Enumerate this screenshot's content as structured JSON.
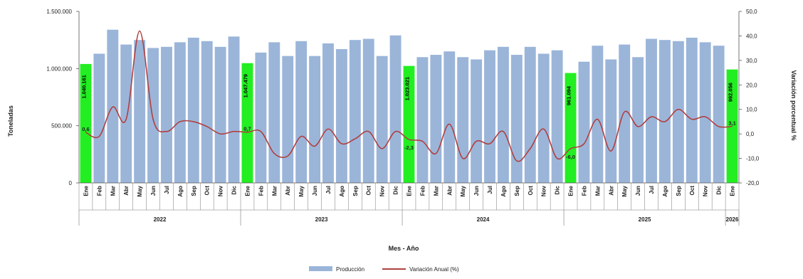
{
  "chart_data": {
    "type": "bar+line",
    "xlabel": "Mes - Año",
    "ylabel": "Toneladas",
    "y2label": "Variación porcentual %",
    "ylim": [
      0,
      1500000
    ],
    "y2lim": [
      -20,
      50
    ],
    "y_ticks": [
      "0",
      "500.000",
      "1.000.000",
      "1.500.000"
    ],
    "y_tick_values": [
      0,
      500000,
      1000000,
      1500000
    ],
    "y2_ticks": [
      "-20,0",
      "-10,0",
      "0,0",
      "10,0",
      "20,0",
      "30,0",
      "40,0",
      "50,0"
    ],
    "y2_tick_values": [
      -20,
      -10,
      0,
      10,
      20,
      30,
      40,
      50
    ],
    "categories": [
      "Ene",
      "Feb",
      "Mar",
      "Abr",
      "May",
      "Jun",
      "Jul",
      "Ago",
      "Sep",
      "Oct",
      "Nov",
      "Dic",
      "Ene",
      "Feb",
      "Mar",
      "Abr",
      "May",
      "Jun",
      "Jul",
      "Ago",
      "Sep",
      "Oct",
      "Nov",
      "Dic",
      "Ene",
      "Feb",
      "Mar",
      "Abr",
      "May",
      "Jun",
      "Jul",
      "Ago",
      "Sep",
      "Oct",
      "Nov",
      "Dic",
      "Ene",
      "Feb",
      "Mar",
      "Abr",
      "May",
      "Jun",
      "Jul",
      "Ago",
      "Sep",
      "Oct",
      "Nov",
      "Dic",
      "Ene"
    ],
    "years": [
      {
        "label": "2022",
        "start": 0,
        "count": 12
      },
      {
        "label": "2023",
        "start": 12,
        "count": 12
      },
      {
        "label": "2024",
        "start": 24,
        "count": 12
      },
      {
        "label": "2025",
        "start": 36,
        "count": 12
      },
      {
        "label": "2026",
        "start": 48,
        "count": 1
      }
    ],
    "series": [
      {
        "name": "Producción",
        "type": "bar",
        "color": "#9bb5d9",
        "highlight_color": "#22ee22",
        "highlight_indices": [
          0,
          12,
          24,
          36,
          48
        ],
        "values": [
          1040161,
          1130000,
          1340000,
          1210000,
          1250000,
          1180000,
          1190000,
          1230000,
          1270000,
          1240000,
          1190000,
          1280000,
          1047479,
          1140000,
          1230000,
          1110000,
          1240000,
          1110000,
          1220000,
          1170000,
          1250000,
          1260000,
          1110000,
          1290000,
          1023021,
          1100000,
          1120000,
          1150000,
          1100000,
          1080000,
          1160000,
          1190000,
          1120000,
          1190000,
          1130000,
          1160000,
          961094,
          1060000,
          1200000,
          1080000,
          1210000,
          1100000,
          1260000,
          1250000,
          1240000,
          1270000,
          1230000,
          1200000,
          992056
        ]
      },
      {
        "name": "Variación Anual (%)",
        "type": "line",
        "color": "#b04040",
        "axis": "secondary",
        "values": [
          0.6,
          -1,
          11,
          6,
          42,
          6,
          1,
          5,
          5,
          3,
          0,
          1,
          0.7,
          1,
          -8,
          -9,
          -1,
          -5,
          2,
          -4,
          -2,
          1,
          -6,
          1,
          -2.3,
          -3,
          -8,
          4,
          -10,
          -3,
          -4,
          1,
          -11,
          -6,
          2,
          -10,
          -6.0,
          -4,
          6,
          -7,
          9,
          3,
          7,
          5,
          10,
          6,
          7,
          3,
          3.1
        ]
      }
    ],
    "bar_labels": [
      {
        "index": 0,
        "text": "1.040.161"
      },
      {
        "index": 12,
        "text": "1.047.479"
      },
      {
        "index": 24,
        "text": "1.023.021"
      },
      {
        "index": 36,
        "text": "961.094"
      },
      {
        "index": 48,
        "text": "992.056"
      }
    ],
    "pct_labels": [
      {
        "index": 0,
        "text": "0,6"
      },
      {
        "index": 12,
        "text": "0,7"
      },
      {
        "index": 24,
        "text": "-2,3"
      },
      {
        "index": 36,
        "text": "-6,0"
      },
      {
        "index": 48,
        "text": "3,1"
      }
    ],
    "legend": {
      "placement": "bottom-center",
      "items": [
        {
          "label": "Producción",
          "kind": "box",
          "color": "#9bb5d9"
        },
        {
          "label": "Variación Anual (%)",
          "kind": "line",
          "color": "#b04040"
        }
      ]
    },
    "grid": false
  }
}
